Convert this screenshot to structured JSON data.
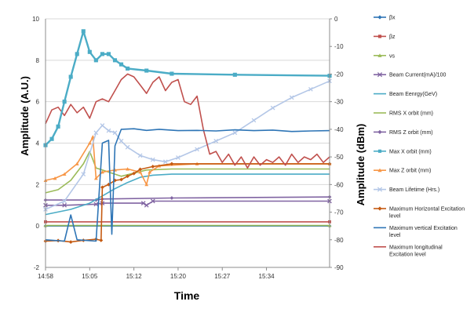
{
  "chart_data": {
    "type": "line",
    "xlabel": "Time",
    "ylabel_left": "Amplitude (A.U.)",
    "ylabel_right": "Amplitude (dBm)",
    "x_ticks": [
      "14:58",
      "15:05",
      "15:12",
      "15:20",
      "15:27",
      "15:34"
    ],
    "ylim_left": [
      -2,
      10
    ],
    "yticks_left": [
      -2,
      0,
      2,
      4,
      6,
      8,
      10
    ],
    "ylim_right": [
      -90,
      0
    ],
    "yticks_right": [
      -90,
      -80,
      -70,
      -60,
      -50,
      -40,
      -30,
      -20,
      -10,
      0
    ],
    "grid": true,
    "legend_position": "right",
    "series": [
      {
        "name": "βx",
        "color": "#2e75b6",
        "marker": "diamond",
        "values": [
          [
            0,
            0
          ],
          [
            45,
            0
          ]
        ]
      },
      {
        "name": "βz",
        "color": "#c0504d",
        "marker": "square",
        "values": [
          [
            0,
            0.2
          ],
          [
            45,
            0.2
          ]
        ]
      },
      {
        "name": "νs",
        "color": "#9bbb59",
        "marker": "triangle",
        "values": [
          [
            0,
            0.02
          ],
          [
            45,
            0.02
          ]
        ]
      },
      {
        "name": "Beam Current(mA)/100",
        "color": "#8064a2",
        "marker": "x",
        "values": [
          [
            0,
            1.0
          ],
          [
            3,
            1.0
          ],
          [
            8,
            1.05
          ],
          [
            9,
            1.1
          ],
          [
            15.5,
            1.1
          ],
          [
            16,
            1.0
          ],
          [
            17,
            1.2
          ],
          [
            45,
            1.2
          ]
        ]
      },
      {
        "name": "Beam Eenrgy(GeV)",
        "color": "#4bacc6",
        "marker": "line",
        "values": [
          [
            0,
            0.55
          ],
          [
            4,
            0.8
          ],
          [
            7,
            1.1
          ],
          [
            9,
            1.45
          ],
          [
            11,
            1.8
          ],
          [
            13,
            2.1
          ],
          [
            15,
            2.35
          ],
          [
            17,
            2.45
          ],
          [
            20,
            2.5
          ],
          [
            45,
            2.5
          ]
        ]
      },
      {
        "name": "RMS X orbit (mm)",
        "color": "#9bbb59",
        "marker": "line",
        "values": [
          [
            0,
            1.6
          ],
          [
            2,
            1.75
          ],
          [
            4,
            2.2
          ],
          [
            6,
            3.0
          ],
          [
            7,
            3.6
          ],
          [
            8,
            2.8
          ],
          [
            9,
            2.7
          ],
          [
            10,
            2.6
          ],
          [
            12,
            2.4
          ],
          [
            14,
            2.55
          ],
          [
            16,
            2.7
          ],
          [
            20,
            2.75
          ],
          [
            45,
            2.75
          ]
        ]
      },
      {
        "name": "RMS Z orbit (mm)",
        "color": "#8064a2",
        "marker": "diamond",
        "values": [
          [
            0,
            1.25
          ],
          [
            8,
            1.25
          ],
          [
            9,
            1.3
          ],
          [
            20,
            1.35
          ],
          [
            45,
            1.4
          ]
        ]
      },
      {
        "name": "Max  X orbit (mm)",
        "color": "#4bacc6",
        "marker": "square",
        "values": [
          [
            0,
            3.9
          ],
          [
            1,
            4.2
          ],
          [
            2,
            4.8
          ],
          [
            3,
            6.0
          ],
          [
            4,
            7.2
          ],
          [
            5,
            8.3
          ],
          [
            6,
            9.4
          ],
          [
            7,
            8.4
          ],
          [
            8,
            8.0
          ],
          [
            9,
            8.3
          ],
          [
            10,
            8.3
          ],
          [
            11,
            8.0
          ],
          [
            12,
            7.8
          ],
          [
            13,
            7.6
          ],
          [
            16,
            7.5
          ],
          [
            20,
            7.35
          ],
          [
            30,
            7.3
          ],
          [
            45,
            7.25
          ]
        ]
      },
      {
        "name": "Max  Z orbit (mm)",
        "color": "#f79646",
        "marker": "triangle",
        "values": [
          [
            0,
            2.2
          ],
          [
            1.5,
            2.3
          ],
          [
            3,
            2.5
          ],
          [
            5,
            3.0
          ],
          [
            7,
            4.0
          ],
          [
            7.5,
            4.3
          ],
          [
            8,
            2.3
          ],
          [
            9,
            2.6
          ],
          [
            11,
            2.7
          ],
          [
            13,
            2.75
          ],
          [
            15,
            2.6
          ],
          [
            16,
            2.0
          ],
          [
            16.5,
            2.6
          ],
          [
            18,
            2.9
          ],
          [
            24,
            3.0
          ],
          [
            45,
            3.0
          ]
        ]
      },
      {
        "name": "Beam Lifetime (Hrs.)",
        "color": "#b4c7e7",
        "marker": "x",
        "values": [
          [
            0,
            0.8
          ],
          [
            3,
            1.2
          ],
          [
            6,
            2.5
          ],
          [
            8,
            4.5
          ],
          [
            9,
            4.85
          ],
          [
            10,
            4.6
          ],
          [
            11,
            4.5
          ],
          [
            12,
            4.1
          ],
          [
            13,
            3.8
          ],
          [
            15,
            3.4
          ],
          [
            17,
            3.2
          ],
          [
            19,
            3.1
          ],
          [
            21,
            3.3
          ],
          [
            24,
            3.7
          ],
          [
            27,
            4.1
          ],
          [
            30,
            4.5
          ],
          [
            33,
            5.1
          ],
          [
            36,
            5.7
          ],
          [
            39,
            6.2
          ],
          [
            42,
            6.6
          ],
          [
            45,
            7.0
          ]
        ]
      },
      {
        "name": "Maximum Horizontal Excitation level",
        "color": "#c55a11",
        "marker": "diamond",
        "values": [
          [
            0,
            -80.5
          ],
          [
            2,
            -80.3
          ],
          [
            4,
            -80.8
          ],
          [
            6,
            -80.2
          ],
          [
            8,
            -79.8
          ],
          [
            8.8,
            -80.2
          ],
          [
            9,
            -61
          ],
          [
            10,
            -60
          ],
          [
            11,
            -58.5
          ],
          [
            12,
            -58.2
          ],
          [
            13,
            -57
          ],
          [
            14,
            -56
          ],
          [
            15,
            -54.5
          ],
          [
            17,
            -53.5
          ],
          [
            20,
            -52.5
          ],
          [
            45,
            -52.5
          ]
        ]
      },
      {
        "name": "Maximum vertical Excitation level",
        "color": "#2e75b6",
        "marker": "line",
        "values": [
          [
            0,
            -80
          ],
          [
            3,
            -80.5
          ],
          [
            4,
            -71
          ],
          [
            5,
            -80
          ],
          [
            8,
            -80.5
          ],
          [
            9,
            -45
          ],
          [
            10,
            -44
          ],
          [
            10.5,
            -78
          ],
          [
            11,
            -46
          ],
          [
            12,
            -40
          ],
          [
            14,
            -39.8
          ],
          [
            16,
            -40.4
          ],
          [
            18,
            -40
          ],
          [
            21,
            -40.5
          ],
          [
            24,
            -40.4
          ],
          [
            27,
            -40.6
          ],
          [
            30,
            -40.2
          ],
          [
            33,
            -40.5
          ],
          [
            36,
            -40.3
          ],
          [
            39,
            -40.8
          ],
          [
            42,
            -40.6
          ],
          [
            45,
            -40.5
          ]
        ]
      },
      {
        "name": "Maximum longitudinal Excitation level",
        "color": "#c0504d",
        "marker": "line",
        "values": [
          [
            0,
            -38
          ],
          [
            1,
            -33
          ],
          [
            2,
            -32
          ],
          [
            3,
            -35
          ],
          [
            4,
            -31
          ],
          [
            5,
            -34
          ],
          [
            6,
            -32
          ],
          [
            7,
            -36
          ],
          [
            8,
            -30
          ],
          [
            9,
            -29
          ],
          [
            10,
            -30
          ],
          [
            11,
            -26
          ],
          [
            12,
            -22
          ],
          [
            13,
            -20
          ],
          [
            14,
            -21
          ],
          [
            15,
            -24
          ],
          [
            16,
            -27
          ],
          [
            17,
            -23
          ],
          [
            18,
            -21
          ],
          [
            19,
            -26
          ],
          [
            20,
            -23
          ],
          [
            21,
            -22
          ],
          [
            22,
            -30
          ],
          [
            23,
            -31
          ],
          [
            24,
            -28
          ],
          [
            25,
            -40
          ],
          [
            26,
            -49
          ],
          [
            27,
            -48
          ],
          [
            28,
            -52
          ],
          [
            29,
            -49
          ],
          [
            30,
            -53
          ],
          [
            31,
            -50
          ],
          [
            32,
            -54
          ],
          [
            33,
            -50
          ],
          [
            34,
            -53
          ],
          [
            35,
            -51
          ],
          [
            36,
            -52
          ],
          [
            37,
            -50
          ],
          [
            38,
            -53
          ],
          [
            39,
            -49
          ],
          [
            40,
            -52
          ],
          [
            41,
            -50
          ],
          [
            42,
            -51
          ],
          [
            43,
            -49
          ],
          [
            44,
            -52
          ],
          [
            45,
            -50
          ]
        ]
      }
    ]
  }
}
